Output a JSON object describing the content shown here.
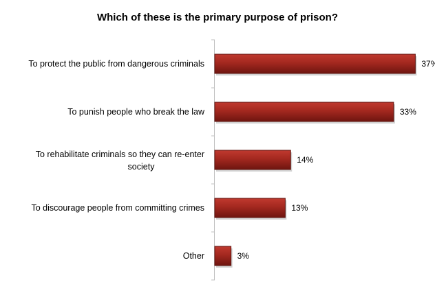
{
  "chart_data": {
    "type": "bar",
    "orientation": "horizontal",
    "title": "Which of these is the primary purpose of prison?",
    "categories": [
      "To protect the public from dangerous criminals",
      "To punish people who break the law",
      "To rehabilitate criminals so they can re-enter society",
      "To discourage people from committing crimes",
      "Other"
    ],
    "values": [
      37,
      33,
      14,
      13,
      3
    ],
    "value_labels": [
      "37%",
      "33%",
      "14%",
      "13%",
      "3%"
    ],
    "xlim": [
      0,
      40
    ],
    "grid": false,
    "legend": "none",
    "bar_color": "#a3281f",
    "bar_edge_color": "#5e120d"
  }
}
